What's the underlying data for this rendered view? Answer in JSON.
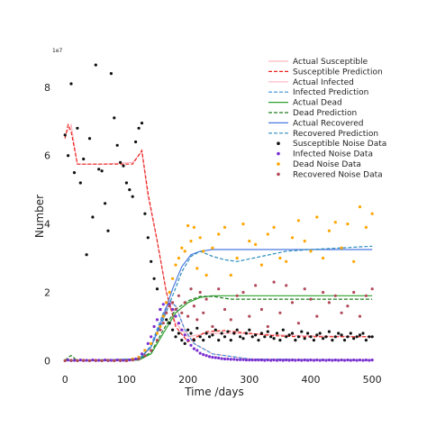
{
  "chart_data": {
    "type": "line",
    "xlabel": "Time /days",
    "ylabel": "Number",
    "offset_label": "1e7",
    "x_ticks": [
      0,
      100,
      200,
      300,
      400,
      500
    ],
    "y_ticks": [
      0,
      2,
      4,
      6,
      8
    ],
    "y_tick_labels": [
      "0",
      "2",
      "4",
      "6",
      "8"
    ],
    "xlim": [
      -15,
      510
    ],
    "ylim": [
      -0.2,
      9.1
    ],
    "y_scale": "1e7",
    "grid": false,
    "legend_position": "upper right",
    "series": [
      {
        "name": "Actual Susceptible",
        "kind": "line",
        "color": "#ffb6c1",
        "dash": "solid",
        "x": [
          0,
          10,
          20,
          60,
          110,
          125,
          135,
          150,
          165,
          180,
          200,
          230,
          280,
          350,
          420,
          500
        ],
        "y": [
          6.6,
          6.9,
          5.75,
          5.75,
          5.8,
          6.1,
          4.8,
          3.5,
          2.0,
          1.1,
          0.7,
          0.8,
          0.8,
          0.75,
          0.72,
          0.7
        ]
      },
      {
        "name": "Susceptible Prediction",
        "kind": "line",
        "color": "#e8241c",
        "dash": "dashed",
        "x": [
          0,
          5,
          10,
          20,
          60,
          110,
          125,
          135,
          150,
          165,
          180,
          200,
          215,
          230,
          260,
          300,
          340,
          380,
          420,
          460,
          500
        ],
        "y": [
          6.5,
          6.9,
          6.7,
          5.75,
          5.75,
          5.75,
          6.15,
          4.9,
          3.5,
          2.0,
          1.0,
          0.55,
          0.7,
          0.85,
          0.88,
          0.8,
          0.73,
          0.7,
          0.7,
          0.7,
          0.7
        ]
      },
      {
        "name": "Actual Infected",
        "kind": "line",
        "color": "#ffb6c1",
        "dash": "solid",
        "x": [
          0,
          100,
          125,
          140,
          160,
          170,
          180,
          195,
          210,
          240,
          300,
          500
        ],
        "y": [
          0,
          0,
          0.1,
          0.4,
          1.3,
          1.7,
          1.6,
          0.9,
          0.5,
          0.2,
          0.05,
          0.02
        ]
      },
      {
        "name": "Infected Prediction",
        "kind": "line",
        "color": "#3a8fd8",
        "dash": "dashed",
        "x": [
          0,
          100,
          125,
          140,
          160,
          170,
          180,
          195,
          210,
          240,
          300,
          500
        ],
        "y": [
          0,
          0,
          0.1,
          0.45,
          1.4,
          1.75,
          1.6,
          0.9,
          0.5,
          0.2,
          0.05,
          0.02
        ]
      },
      {
        "name": "Actual Dead",
        "kind": "line",
        "color": "#2ca02c",
        "dash": "solid",
        "x": [
          0,
          120,
          140,
          160,
          180,
          200,
          220,
          240,
          270,
          320,
          400,
          500
        ],
        "y": [
          0,
          0.02,
          0.2,
          0.8,
          1.4,
          1.7,
          1.85,
          1.9,
          1.9,
          1.9,
          1.9,
          1.9
        ]
      },
      {
        "name": "Dead Prediction",
        "kind": "line",
        "color": "#1e7b1e",
        "dash": "dashed",
        "x": [
          0,
          5,
          10,
          20,
          120,
          140,
          160,
          180,
          200,
          220,
          240,
          270,
          320,
          400,
          500
        ],
        "y": [
          0,
          0.1,
          0.15,
          0,
          0.02,
          0.25,
          0.9,
          1.5,
          1.75,
          1.88,
          1.88,
          1.8,
          1.8,
          1.8,
          1.8
        ]
      },
      {
        "name": "Actual Recovered",
        "kind": "line",
        "color": "#4a78e0",
        "dash": "solid",
        "x": [
          0,
          120,
          140,
          160,
          175,
          190,
          205,
          220,
          240,
          270,
          320,
          400,
          500
        ],
        "y": [
          0,
          0.05,
          0.4,
          1.3,
          2.1,
          2.75,
          3.1,
          3.2,
          3.25,
          3.25,
          3.25,
          3.25,
          3.25
        ]
      },
      {
        "name": "Recovered Prediction",
        "kind": "line",
        "color": "#2b8cbe",
        "dash": "dashed",
        "x": [
          0,
          120,
          140,
          160,
          175,
          190,
          205,
          220,
          240,
          260,
          280,
          320,
          360,
          400,
          450,
          500
        ],
        "y": [
          0,
          0.05,
          0.4,
          1.2,
          1.9,
          2.6,
          3.05,
          3.2,
          3.05,
          2.95,
          2.9,
          3.05,
          3.2,
          3.25,
          3.3,
          3.35
        ]
      },
      {
        "name": "Susceptible Noise Data",
        "kind": "scatter",
        "color": "#111111",
        "x": [
          0,
          5,
          10,
          15,
          20,
          25,
          30,
          35,
          40,
          45,
          50,
          55,
          60,
          65,
          70,
          75,
          80,
          85,
          90,
          95,
          100,
          105,
          110,
          115,
          120,
          125,
          130,
          135,
          140,
          145,
          150,
          155,
          160,
          165,
          170,
          175,
          180,
          185,
          190,
          195,
          200,
          205,
          210,
          215,
          220,
          225,
          230,
          235,
          240,
          245,
          250,
          255,
          260,
          265,
          270,
          275,
          280,
          285,
          290,
          295,
          300,
          305,
          310,
          315,
          320,
          325,
          330,
          335,
          340,
          345,
          350,
          355,
          360,
          365,
          370,
          375,
          380,
          385,
          390,
          395,
          400,
          405,
          410,
          415,
          420,
          425,
          430,
          435,
          440,
          445,
          450,
          455,
          460,
          465,
          470,
          475,
          480,
          485,
          490,
          495,
          500
        ],
        "y": [
          6.6,
          6.0,
          8.1,
          5.5,
          6.8,
          5.2,
          5.9,
          3.1,
          6.5,
          4.2,
          8.65,
          5.6,
          5.55,
          4.6,
          3.8,
          8.4,
          7.1,
          6.3,
          5.8,
          5.7,
          5.2,
          5.0,
          4.8,
          6.4,
          6.8,
          6.95,
          4.3,
          3.6,
          2.9,
          2.4,
          2.1,
          1.5,
          1.3,
          1.2,
          1.1,
          0.9,
          0.7,
          0.8,
          0.6,
          0.5,
          0.9,
          0.8,
          0.6,
          0.95,
          0.7,
          0.6,
          0.8,
          0.7,
          0.75,
          0.9,
          0.6,
          0.8,
          0.7,
          0.85,
          0.6,
          0.8,
          0.9,
          0.7,
          0.65,
          0.8,
          0.9,
          0.7,
          0.75,
          0.6,
          0.8,
          0.7,
          0.85,
          0.7,
          0.65,
          0.8,
          0.6,
          0.9,
          0.7,
          0.75,
          0.8,
          0.6,
          0.7,
          0.85,
          0.65,
          0.8,
          0.7,
          0.6,
          0.75,
          0.8,
          0.65,
          0.7,
          0.85,
          0.6,
          0.7,
          0.8,
          0.75,
          0.6,
          0.7,
          0.8,
          0.65,
          0.7,
          0.75,
          0.8,
          0.6,
          0.7,
          0.7
        ]
      },
      {
        "name": "Infected Noise Data",
        "kind": "scatter",
        "color": "#7b2fd0",
        "x": [
          0,
          5,
          10,
          15,
          20,
          25,
          30,
          35,
          40,
          45,
          50,
          55,
          60,
          65,
          70,
          75,
          80,
          85,
          90,
          95,
          100,
          105,
          110,
          115,
          120,
          125,
          130,
          135,
          140,
          145,
          150,
          155,
          160,
          165,
          170,
          175,
          180,
          185,
          190,
          195,
          200,
          205,
          210,
          215,
          220,
          225,
          230,
          235,
          240,
          245,
          250,
          255,
          260,
          265,
          270,
          275,
          280,
          285,
          290,
          295,
          300,
          305,
          310,
          315,
          320,
          325,
          330,
          335,
          340,
          345,
          350,
          355,
          360,
          365,
          370,
          375,
          380,
          385,
          390,
          395,
          400,
          405,
          410,
          415,
          420,
          425,
          430,
          435,
          440,
          445,
          450,
          455,
          460,
          465,
          470,
          475,
          480,
          485,
          490,
          495,
          500
        ],
        "y": [
          0,
          0.02,
          0,
          0.01,
          0,
          0.02,
          0,
          0.01,
          0,
          0.02,
          0,
          0.01,
          0,
          0.02,
          0,
          0.01,
          0,
          0.02,
          0,
          0.01,
          0,
          0.02,
          0.03,
          0.05,
          0.1,
          0.2,
          0.3,
          0.5,
          0.7,
          1.0,
          1.2,
          1.5,
          1.65,
          1.7,
          1.65,
          1.5,
          1.3,
          1.1,
          0.9,
          0.75,
          0.6,
          0.45,
          0.35,
          0.3,
          0.22,
          0.18,
          0.15,
          0.12,
          0.1,
          0.09,
          0.08,
          0.06,
          0.05,
          0.05,
          0.04,
          0.04,
          0.03,
          0.03,
          0.03,
          0.02,
          0.02,
          0.02,
          0.02,
          0.02,
          0.02,
          0.01,
          0.02,
          0.01,
          0.02,
          0.01,
          0.02,
          0.01,
          0.02,
          0.01,
          0.02,
          0.01,
          0.02,
          0.01,
          0.02,
          0.01,
          0.02,
          0.01,
          0.02,
          0.01,
          0.02,
          0.01,
          0.02,
          0.01,
          0.02,
          0.01,
          0.02,
          0.01,
          0.02,
          0.01,
          0.02,
          0.01,
          0.02,
          0.01,
          0.02,
          0.01,
          0.02
        ]
      },
      {
        "name": "Dead Noise Data",
        "kind": "scatter",
        "color": "#ffa500",
        "x": [
          0,
          10,
          20,
          30,
          40,
          50,
          60,
          70,
          80,
          90,
          100,
          110,
          120,
          130,
          140,
          150,
          155,
          160,
          165,
          170,
          175,
          180,
          185,
          190,
          195,
          200,
          205,
          210,
          215,
          220,
          225,
          230,
          240,
          250,
          260,
          270,
          280,
          290,
          300,
          310,
          320,
          330,
          340,
          350,
          360,
          370,
          380,
          390,
          400,
          410,
          420,
          430,
          440,
          450,
          460,
          470,
          480,
          490,
          500
        ],
        "y": [
          0,
          0.01,
          0,
          0.01,
          0,
          0.01,
          0,
          0.01,
          0,
          0.01,
          0,
          0.05,
          0.1,
          0.3,
          0.5,
          0.8,
          1.0,
          1.3,
          1.7,
          2.0,
          2.4,
          2.8,
          3.0,
          3.3,
          3.2,
          3.95,
          3.5,
          3.9,
          2.7,
          3.6,
          3.2,
          2.5,
          3.3,
          3.7,
          3.9,
          2.5,
          3.0,
          4.0,
          3.5,
          3.4,
          2.8,
          3.7,
          3.9,
          3.0,
          2.9,
          3.6,
          4.1,
          3.5,
          3.2,
          4.2,
          3.0,
          3.8,
          4.05,
          3.3,
          4.0,
          2.9,
          4.5,
          3.9,
          4.3
        ]
      },
      {
        "name": "Recovered Noise Data",
        "kind": "scatter",
        "color": "#b24a5a",
        "x": [
          0,
          10,
          20,
          30,
          40,
          50,
          60,
          70,
          80,
          90,
          100,
          110,
          120,
          130,
          140,
          150,
          155,
          160,
          165,
          170,
          175,
          180,
          185,
          190,
          195,
          200,
          205,
          210,
          215,
          220,
          225,
          230,
          240,
          250,
          260,
          270,
          280,
          290,
          300,
          310,
          320,
          330,
          340,
          350,
          360,
          370,
          380,
          390,
          400,
          410,
          420,
          430,
          440,
          450,
          460,
          470,
          480,
          490,
          500
        ],
        "y": [
          0,
          0.01,
          0,
          0.01,
          0,
          0.01,
          0,
          0.01,
          0,
          0.01,
          0,
          0.02,
          0.05,
          0.15,
          0.3,
          0.6,
          0.9,
          1.1,
          1.4,
          1.6,
          1.7,
          1.5,
          1.9,
          1.4,
          1.7,
          1.3,
          2.1,
          1.6,
          1.2,
          2.0,
          1.4,
          1.8,
          1.0,
          2.1,
          1.5,
          1.2,
          1.9,
          2.0,
          1.3,
          2.2,
          1.5,
          1.0,
          2.3,
          1.4,
          2.2,
          1.7,
          1.1,
          2.1,
          1.8,
          1.3,
          2.0,
          1.7,
          1.9,
          1.4,
          1.6,
          2.0,
          1.3,
          1.9,
          2.1
        ]
      }
    ]
  }
}
